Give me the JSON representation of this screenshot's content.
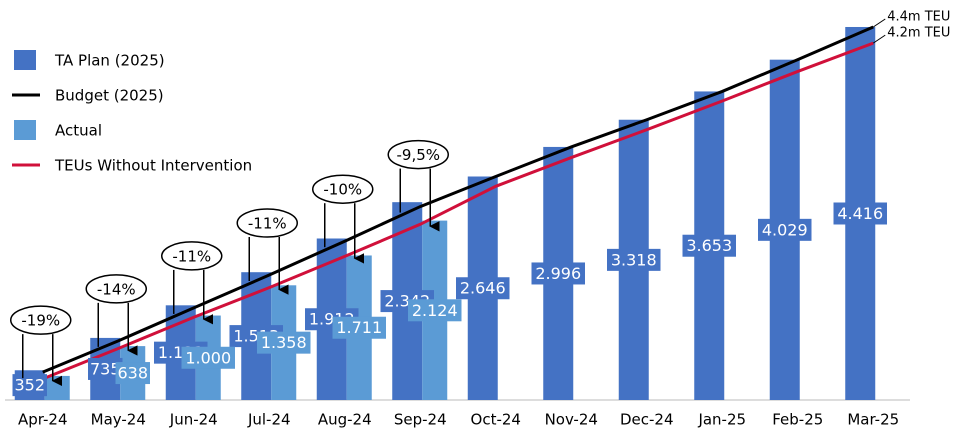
{
  "chart_data": {
    "type": "bar",
    "categories": [
      "Apr-24",
      "May-24",
      "Jun-24",
      "Jul-24",
      "Aug-24",
      "Sep-24",
      "Oct-24",
      "Nov-24",
      "Dec-24",
      "Jan-25",
      "Feb-25",
      "Mar-25"
    ],
    "ylim": [
      0,
      4700
    ],
    "series": [
      {
        "name": "TA Plan (2025)",
        "type": "bar",
        "color": "#4472c4",
        "values": [
          352,
          735,
          1121,
          1513,
          1912,
          2342,
          2646,
          2996,
          3318,
          3653,
          4029,
          4416
        ],
        "value_labels": [
          "352",
          "735",
          "1.121",
          "1.513",
          "1.912",
          "2.342",
          "2.646",
          "2.996",
          "3.318",
          "3.653",
          "4.029",
          "4.416"
        ]
      },
      {
        "name": "Budget (2025)",
        "type": "line",
        "color": "#000000",
        "values": [
          330,
          700,
          1090,
          1480,
          1880,
          2290,
          2646,
          2996,
          3318,
          3653,
          4029,
          4416
        ],
        "end_label": "4.4m TEU"
      },
      {
        "name": "Actual",
        "type": "bar",
        "color": "#5b9bd5",
        "values": [
          285,
          638,
          1000,
          1358,
          1711,
          2124,
          null,
          null,
          null,
          null,
          null,
          null
        ],
        "value_labels": [
          null,
          "638",
          "1.000",
          "1.358",
          "1.711",
          "2.124",
          null,
          null,
          null,
          null,
          null,
          null
        ]
      },
      {
        "name": "TEUs Without Intervention",
        "type": "line",
        "color": "#d0103a",
        "values": [
          250,
          610,
          980,
          1330,
          1700,
          2080,
          2530,
          2870,
          3200,
          3540,
          3890,
          4225
        ],
        "end_label": "4.2m TEU"
      }
    ],
    "annotations": [
      "-19%",
      "-14%",
      "-11%",
      "-11%",
      "-10%",
      "-9,5%",
      null,
      null,
      null,
      null,
      null,
      null
    ]
  }
}
